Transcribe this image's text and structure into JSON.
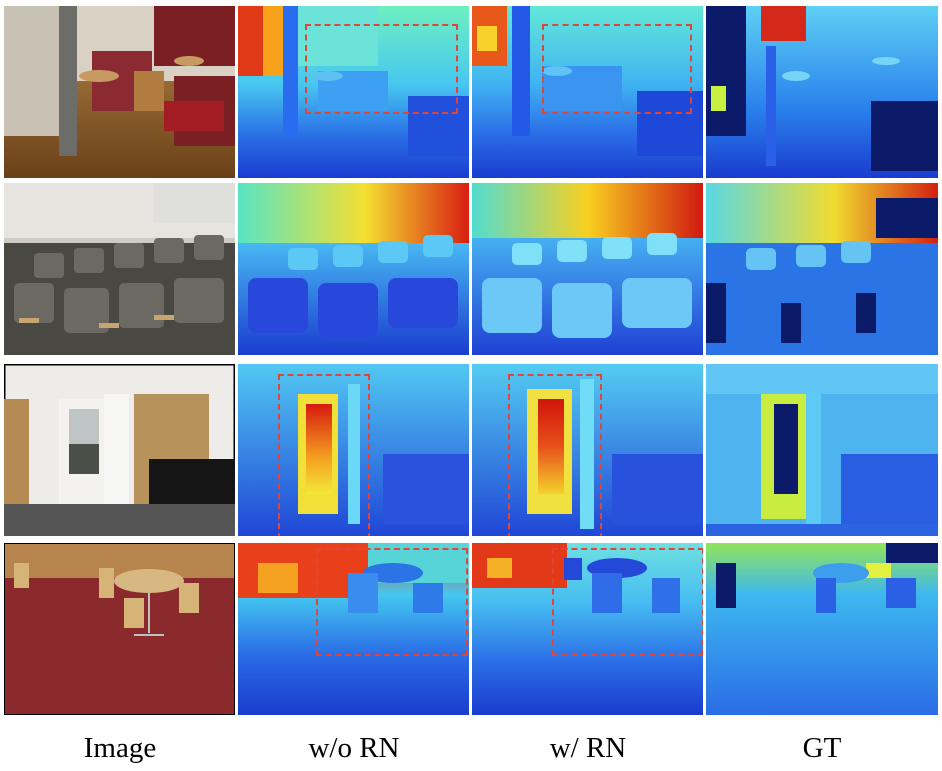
{
  "columns": [
    {
      "id": "image",
      "label": "Image"
    },
    {
      "id": "wo_rn",
      "label": "w/o RN"
    },
    {
      "id": "w_rn",
      "label": "w/ RN"
    },
    {
      "id": "gt",
      "label": "GT"
    }
  ],
  "rows": [
    {
      "scene": "lounge-chairs",
      "has_roi": true
    },
    {
      "scene": "auditorium-seats",
      "has_roi": false
    },
    {
      "scene": "dorm-doorway",
      "has_roi": true
    },
    {
      "scene": "cafeteria-table",
      "has_roi": true
    }
  ],
  "colors": {
    "roi": "#e0453a",
    "depth_near": "#1a3ccf",
    "depth_mid": "#3fb4f0",
    "depth_far": "#d0281a"
  }
}
